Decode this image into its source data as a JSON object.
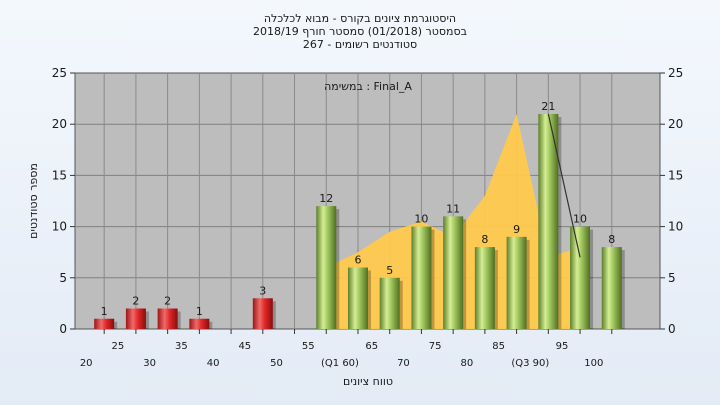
{
  "chart_data": {
    "type": "bar",
    "title_lines": [
      "היסטוגרמת ציונים בקורס - מבוא לכלכלה",
      "בסמסטר  (01/2018)  סמסטר חורף 2018/19",
      "סטודנטים רשומים - 267"
    ],
    "annotation": "במשימה : Final_A",
    "ylabel": "מספר סטודנטים",
    "xlabel": "טווח ציונים",
    "ylim": [
      0,
      25
    ],
    "yticks": [
      0,
      5,
      10,
      15,
      20,
      25
    ],
    "xticks": [
      {
        "x": 20,
        "label": "20"
      },
      {
        "x": 25,
        "label": "25"
      },
      {
        "x": 30,
        "label": "30"
      },
      {
        "x": 35,
        "label": "35"
      },
      {
        "x": 40,
        "label": "40"
      },
      {
        "x": 45,
        "label": "45"
      },
      {
        "x": 50,
        "label": "50"
      },
      {
        "x": 55,
        "label": "55"
      },
      {
        "x": 60,
        "label": "(Q1 60)"
      },
      {
        "x": 65,
        "label": "65"
      },
      {
        "x": 70,
        "label": "70"
      },
      {
        "x": 75,
        "label": "75"
      },
      {
        "x": 80,
        "label": "80"
      },
      {
        "x": 85,
        "label": "85"
      },
      {
        "x": 90,
        "label": "(Q3 90)"
      },
      {
        "x": 95,
        "label": "95"
      },
      {
        "x": 100,
        "label": "100"
      }
    ],
    "bars": [
      {
        "x": 25,
        "value": 1,
        "color": "red"
      },
      {
        "x": 30,
        "value": 2,
        "color": "red"
      },
      {
        "x": 35,
        "value": 2,
        "color": "red"
      },
      {
        "x": 40,
        "value": 1,
        "color": "red"
      },
      {
        "x": 50,
        "value": 3,
        "color": "red"
      },
      {
        "x": 60,
        "value": 12,
        "color": "green"
      },
      {
        "x": 65,
        "value": 6,
        "color": "green"
      },
      {
        "x": 70,
        "value": 5,
        "color": "green"
      },
      {
        "x": 75,
        "value": 10,
        "color": "green"
      },
      {
        "x": 80,
        "value": 11,
        "color": "green"
      },
      {
        "x": 85,
        "value": 8,
        "color": "green"
      },
      {
        "x": 90,
        "value": 9,
        "color": "green"
      },
      {
        "x": 95,
        "value": 21,
        "color": "green"
      },
      {
        "x": 100,
        "value": 10,
        "color": "green"
      },
      {
        "x": 105,
        "value": 8,
        "color": "green"
      }
    ],
    "area": {
      "x": [
        60,
        65,
        70,
        75,
        80,
        85,
        90,
        95,
        100
      ],
      "y": [
        6,
        7.5,
        9.5,
        10.5,
        9,
        13,
        21,
        7,
        8
      ],
      "color": "#ffc94d"
    },
    "trend_line": {
      "x": [
        95,
        100
      ],
      "y": [
        21,
        7
      ]
    },
    "colors": {
      "plot_bg": "#bdbdbd",
      "red_bar": "#e23a3a",
      "green_bar": "#9cc25a",
      "area": "#ffc94d"
    }
  }
}
